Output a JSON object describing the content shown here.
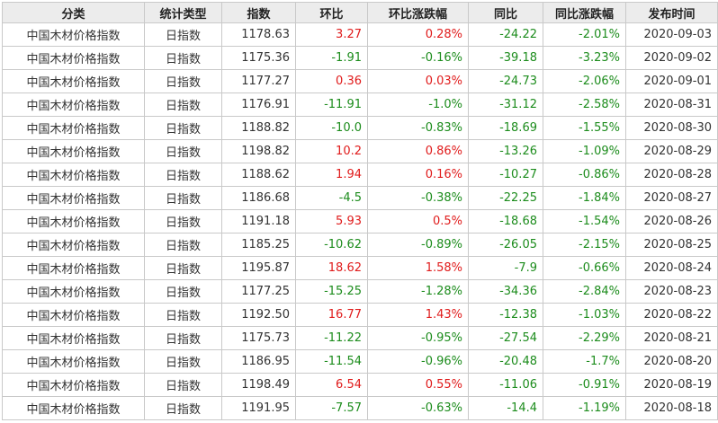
{
  "table": {
    "headers": [
      "分类",
      "统计类型",
      "指数",
      "环比",
      "环比涨跌幅",
      "同比",
      "同比涨跌幅",
      "发布时间"
    ],
    "rows": [
      {
        "category": "中国木材价格指数",
        "type": "日指数",
        "index": "1178.63",
        "mom": "3.27",
        "mom_pct": "0.28%",
        "yoy": "-24.22",
        "yoy_pct": "-2.01%",
        "date": "2020-09-03"
      },
      {
        "category": "中国木材价格指数",
        "type": "日指数",
        "index": "1175.36",
        "mom": "-1.91",
        "mom_pct": "-0.16%",
        "yoy": "-39.18",
        "yoy_pct": "-3.23%",
        "date": "2020-09-02"
      },
      {
        "category": "中国木材价格指数",
        "type": "日指数",
        "index": "1177.27",
        "mom": "0.36",
        "mom_pct": "0.03%",
        "yoy": "-24.73",
        "yoy_pct": "-2.06%",
        "date": "2020-09-01"
      },
      {
        "category": "中国木材价格指数",
        "type": "日指数",
        "index": "1176.91",
        "mom": "-11.91",
        "mom_pct": "-1.0%",
        "yoy": "-31.12",
        "yoy_pct": "-2.58%",
        "date": "2020-08-31"
      },
      {
        "category": "中国木材价格指数",
        "type": "日指数",
        "index": "1188.82",
        "mom": "-10.0",
        "mom_pct": "-0.83%",
        "yoy": "-18.69",
        "yoy_pct": "-1.55%",
        "date": "2020-08-30"
      },
      {
        "category": "中国木材价格指数",
        "type": "日指数",
        "index": "1198.82",
        "mom": "10.2",
        "mom_pct": "0.86%",
        "yoy": "-13.26",
        "yoy_pct": "-1.09%",
        "date": "2020-08-29"
      },
      {
        "category": "中国木材价格指数",
        "type": "日指数",
        "index": "1188.62",
        "mom": "1.94",
        "mom_pct": "0.16%",
        "yoy": "-10.27",
        "yoy_pct": "-0.86%",
        "date": "2020-08-28"
      },
      {
        "category": "中国木材价格指数",
        "type": "日指数",
        "index": "1186.68",
        "mom": "-4.5",
        "mom_pct": "-0.38%",
        "yoy": "-22.25",
        "yoy_pct": "-1.84%",
        "date": "2020-08-27"
      },
      {
        "category": "中国木材价格指数",
        "type": "日指数",
        "index": "1191.18",
        "mom": "5.93",
        "mom_pct": "0.5%",
        "yoy": "-18.68",
        "yoy_pct": "-1.54%",
        "date": "2020-08-26"
      },
      {
        "category": "中国木材价格指数",
        "type": "日指数",
        "index": "1185.25",
        "mom": "-10.62",
        "mom_pct": "-0.89%",
        "yoy": "-26.05",
        "yoy_pct": "-2.15%",
        "date": "2020-08-25"
      },
      {
        "category": "中国木材价格指数",
        "type": "日指数",
        "index": "1195.87",
        "mom": "18.62",
        "mom_pct": "1.58%",
        "yoy": "-7.9",
        "yoy_pct": "-0.66%",
        "date": "2020-08-24"
      },
      {
        "category": "中国木材价格指数",
        "type": "日指数",
        "index": "1177.25",
        "mom": "-15.25",
        "mom_pct": "-1.28%",
        "yoy": "-34.36",
        "yoy_pct": "-2.84%",
        "date": "2020-08-23"
      },
      {
        "category": "中国木材价格指数",
        "type": "日指数",
        "index": "1192.50",
        "mom": "16.77",
        "mom_pct": "1.43%",
        "yoy": "-12.38",
        "yoy_pct": "-1.03%",
        "date": "2020-08-22"
      },
      {
        "category": "中国木材价格指数",
        "type": "日指数",
        "index": "1175.73",
        "mom": "-11.22",
        "mom_pct": "-0.95%",
        "yoy": "-27.54",
        "yoy_pct": "-2.29%",
        "date": "2020-08-21"
      },
      {
        "category": "中国木材价格指数",
        "type": "日指数",
        "index": "1186.95",
        "mom": "-11.54",
        "mom_pct": "-0.96%",
        "yoy": "-20.48",
        "yoy_pct": "-1.7%",
        "date": "2020-08-20"
      },
      {
        "category": "中国木材价格指数",
        "type": "日指数",
        "index": "1198.49",
        "mom": "6.54",
        "mom_pct": "0.55%",
        "yoy": "-11.06",
        "yoy_pct": "-0.91%",
        "date": "2020-08-19"
      },
      {
        "category": "中国木材价格指数",
        "type": "日指数",
        "index": "1191.95",
        "mom": "-7.57",
        "mom_pct": "-0.63%",
        "yoy": "-14.4",
        "yoy_pct": "-1.19%",
        "date": "2020-08-18"
      }
    ]
  },
  "colors": {
    "up": "#e01b1b",
    "down": "#1c8c1c",
    "header_bg": "#ececec",
    "border": "#c9c9c9"
  }
}
